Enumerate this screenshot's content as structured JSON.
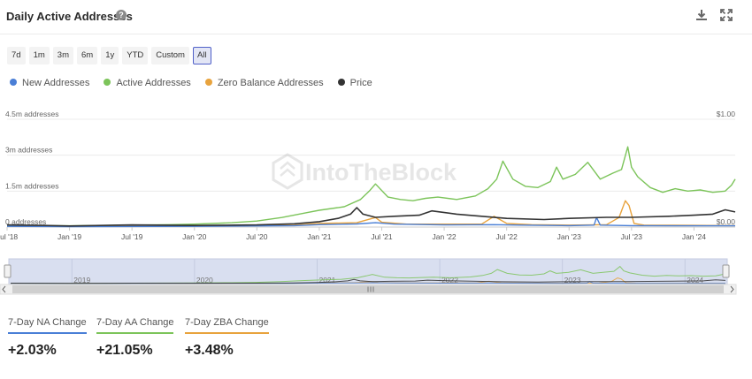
{
  "header": {
    "title": "Daily Active Addresses",
    "help_icon": "?"
  },
  "toolbar": {
    "download_icon": "download-icon",
    "fullscreen_icon": "fullscreen-icon"
  },
  "ranges": [
    {
      "label": "7d",
      "active": false
    },
    {
      "label": "1m",
      "active": false
    },
    {
      "label": "3m",
      "active": false
    },
    {
      "label": "6m",
      "active": false
    },
    {
      "label": "1y",
      "active": false
    },
    {
      "label": "YTD",
      "active": false
    },
    {
      "label": "Custom",
      "active": false
    },
    {
      "label": "All",
      "active": true
    }
  ],
  "legend": [
    {
      "name": "New Addresses",
      "color": "#4a7fd6"
    },
    {
      "name": "Active Addresses",
      "color": "#7cc45a"
    },
    {
      "name": "Zero Balance Addresses",
      "color": "#e8a33d"
    },
    {
      "name": "Price",
      "color": "#333333"
    }
  ],
  "watermark": "IntoTheBlock",
  "stats": [
    {
      "label": "7-Day NA Change",
      "value": "+2.03%",
      "color": "#4a7fd6"
    },
    {
      "label": "7-Day AA Change",
      "value": "+21.05%",
      "color": "#7cc45a"
    },
    {
      "label": "7-Day ZBA Change",
      "value": "+3.48%",
      "color": "#e8a33d"
    }
  ],
  "chart_data": {
    "type": "line",
    "title": "Daily Active Addresses",
    "x_ticks": [
      "Jul '18",
      "Jan '19",
      "Jul '19",
      "Jan '20",
      "Jul '20",
      "Jan '21",
      "Jul '21",
      "Jan '22",
      "Jul '22",
      "Jan '23",
      "Jul '23",
      "Jan '24"
    ],
    "y_left": {
      "ticks": [
        "0 addresses",
        "1.5m addresses",
        "3m addresses",
        "4.5m addresses"
      ],
      "range": [
        0,
        4500000
      ]
    },
    "y_right": {
      "ticks": [
        "$0.00",
        "$1.00"
      ],
      "range": [
        0,
        1
      ]
    },
    "x_range": [
      2018.5,
      2024.33
    ],
    "grid": true,
    "legend_position": "top-left",
    "navigator_years": [
      "2019",
      "2020",
      "2021",
      "2022",
      "2023",
      "2024"
    ],
    "series": [
      {
        "name": "Active Addresses",
        "axis": "left",
        "x": [
          2018.5,
          2018.8,
          2019.0,
          2019.5,
          2019.8,
          2020.0,
          2020.3,
          2020.5,
          2020.7,
          2020.9,
          2021.0,
          2021.2,
          2021.33,
          2021.4,
          2021.45,
          2021.55,
          2021.65,
          2021.75,
          2021.85,
          2021.95,
          2022.1,
          2022.25,
          2022.35,
          2022.42,
          2022.47,
          2022.55,
          2022.65,
          2022.75,
          2022.85,
          2022.9,
          2022.95,
          2023.05,
          2023.15,
          2023.25,
          2023.35,
          2023.42,
          2023.47,
          2023.5,
          2023.55,
          2023.65,
          2023.75,
          2023.85,
          2023.95,
          2024.05,
          2024.15,
          2024.25,
          2024.3,
          2024.33
        ],
        "y": [
          80000,
          60000,
          50000,
          80000,
          100000,
          120000,
          180000,
          250000,
          400000,
          600000,
          700000,
          850000,
          1150000,
          1500000,
          1800000,
          1250000,
          1150000,
          1100000,
          1200000,
          1250000,
          1150000,
          1300000,
          1600000,
          2000000,
          2750000,
          2000000,
          1700000,
          1650000,
          1900000,
          2500000,
          2000000,
          2200000,
          2700000,
          2000000,
          2250000,
          2400000,
          3350000,
          2500000,
          2100000,
          1650000,
          1450000,
          1600000,
          1500000,
          1550000,
          1450000,
          1500000,
          1750000,
          2000000
        ]
      },
      {
        "name": "Zero Balance Addresses",
        "axis": "left",
        "x": [
          2018.5,
          2019.0,
          2020.0,
          2020.8,
          2021.0,
          2021.3,
          2021.45,
          2021.5,
          2021.7,
          2022.0,
          2022.3,
          2022.4,
          2022.5,
          2022.7,
          2023.0,
          2023.3,
          2023.4,
          2023.45,
          2023.48,
          2023.52,
          2023.6,
          2024.0,
          2024.33
        ],
        "y": [
          40000,
          30000,
          40000,
          80000,
          150000,
          180000,
          400000,
          200000,
          120000,
          120000,
          120000,
          450000,
          150000,
          100000,
          80000,
          100000,
          400000,
          1100000,
          900000,
          150000,
          80000,
          70000,
          60000
        ]
      },
      {
        "name": "New Addresses",
        "axis": "left",
        "x": [
          2018.5,
          2019.0,
          2020.0,
          2020.8,
          2021.0,
          2021.3,
          2021.45,
          2021.6,
          2022.0,
          2022.4,
          2022.6,
          2023.0,
          2023.2,
          2023.22,
          2023.25,
          2023.5,
          2024.0,
          2024.33
        ],
        "y": [
          30000,
          20000,
          30000,
          60000,
          100000,
          130000,
          180000,
          120000,
          90000,
          100000,
          80000,
          60000,
          80000,
          400000,
          80000,
          60000,
          50000,
          50000
        ]
      },
      {
        "name": "Price",
        "axis": "right",
        "x": [
          2018.5,
          2018.8,
          2019.0,
          2019.5,
          2020.0,
          2020.5,
          2020.8,
          2021.0,
          2021.15,
          2021.25,
          2021.3,
          2021.35,
          2021.45,
          2021.6,
          2021.8,
          2021.9,
          2022.1,
          2022.3,
          2022.5,
          2022.8,
          2023.0,
          2023.3,
          2023.5,
          2023.8,
          2024.0,
          2024.15,
          2024.25,
          2024.33
        ],
        "y": [
          0.02,
          0.015,
          0.01,
          0.02,
          0.015,
          0.02,
          0.03,
          0.05,
          0.08,
          0.12,
          0.18,
          0.12,
          0.09,
          0.1,
          0.11,
          0.15,
          0.12,
          0.1,
          0.08,
          0.07,
          0.08,
          0.09,
          0.09,
          0.1,
          0.11,
          0.12,
          0.16,
          0.14
        ]
      }
    ]
  }
}
